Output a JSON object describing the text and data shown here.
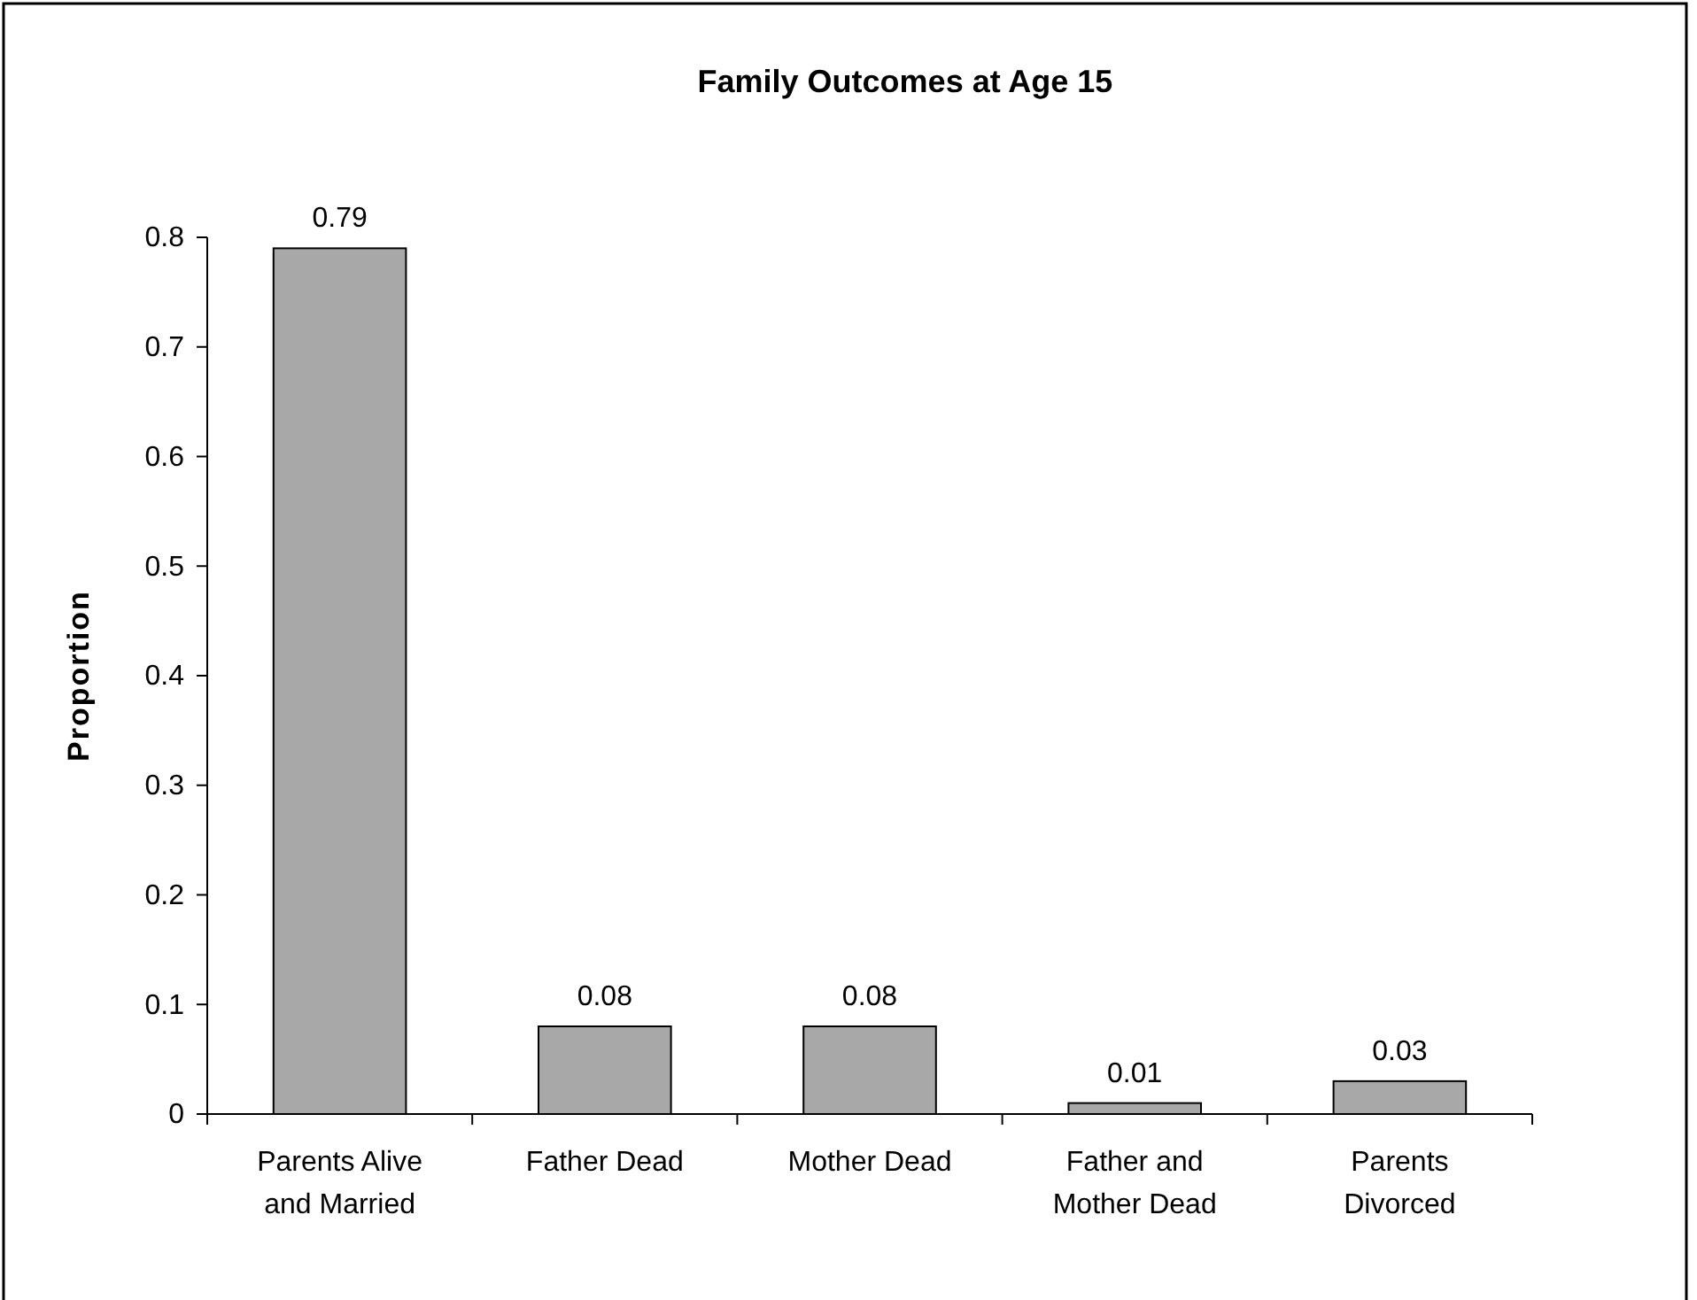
{
  "chart_data": {
    "type": "bar",
    "title": "Family Outcomes at Age 15",
    "ylabel": "Proportion",
    "categories": [
      "Parents Alive and Married",
      "Father Dead",
      "Mother Dead",
      "Father and Mother Dead",
      "Parents Divorced"
    ],
    "values": [
      0.79,
      0.08,
      0.08,
      0.01,
      0.03
    ],
    "color": "#a8a8a8",
    "ylim": [
      0,
      0.8
    ],
    "yticks": [
      0,
      0.1,
      0.2,
      0.3,
      0.4,
      0.5,
      0.6,
      0.7,
      0.8
    ],
    "grid": false,
    "data_labels": true
  }
}
